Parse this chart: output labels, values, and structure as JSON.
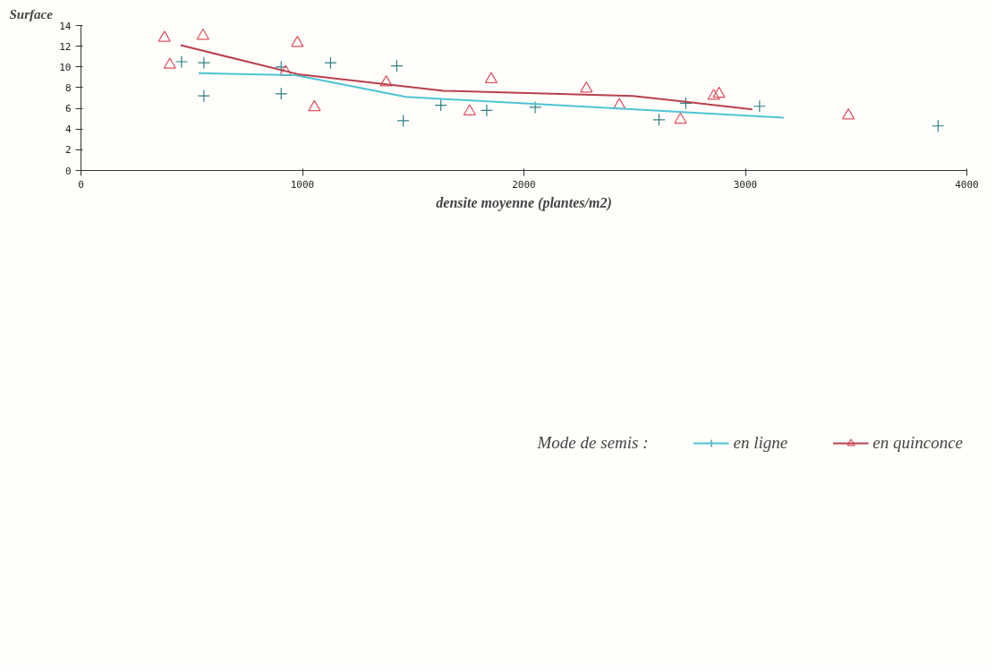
{
  "chart_data": {
    "type": "scatter",
    "xlabel": "densite moyenne (plantes/m2)",
    "ylabel": "Surface",
    "legend_title": "Mode de semis :",
    "xlim": [
      0,
      4000
    ],
    "ylim": [
      0,
      14
    ],
    "xticks": [
      0,
      1000,
      2000,
      3000,
      4000
    ],
    "yticks": [
      0,
      2,
      4,
      6,
      8,
      10,
      12,
      14
    ],
    "grid": false,
    "legend": "bottom",
    "series": [
      {
        "name": "en ligne",
        "marker": "cross",
        "color": "#2f7f88",
        "x": [
          454,
          555,
          904,
          1127,
          1426,
          555,
          904,
          1625,
          1832,
          1455,
          2051,
          2731,
          3064,
          2610,
          3870
        ],
        "values": [
          10.5,
          10.4,
          10.0,
          10.4,
          10.1,
          7.2,
          7.4,
          6.3,
          5.8,
          4.8,
          6.1,
          6.5,
          6.2,
          4.9,
          4.3
        ]
      },
      {
        "name": "en quinconce",
        "marker": "triangle",
        "color": "#e0505f",
        "x": [
          377,
          551,
          977,
          401,
          924,
          1378,
          1852,
          1054,
          1755,
          2282,
          2881,
          2857,
          2431,
          2707,
          3465
        ],
        "values": [
          12.8,
          13.0,
          12.3,
          10.2,
          9.5,
          8.5,
          8.8,
          6.1,
          5.7,
          7.9,
          7.4,
          7.2,
          6.3,
          4.9,
          5.3
        ]
      },
      {
        "type": "line",
        "color": "#4cc3d4",
        "x": [
          531,
          969,
          1467,
          3173
        ],
        "values": [
          9.4,
          9.2,
          7.1,
          5.1
        ]
      },
      {
        "type": "line",
        "color": "#b8404e",
        "x": [
          450,
          980,
          1637,
          2492,
          3031
        ],
        "values": [
          12.1,
          9.3,
          7.7,
          7.2,
          5.9
        ]
      }
    ]
  }
}
